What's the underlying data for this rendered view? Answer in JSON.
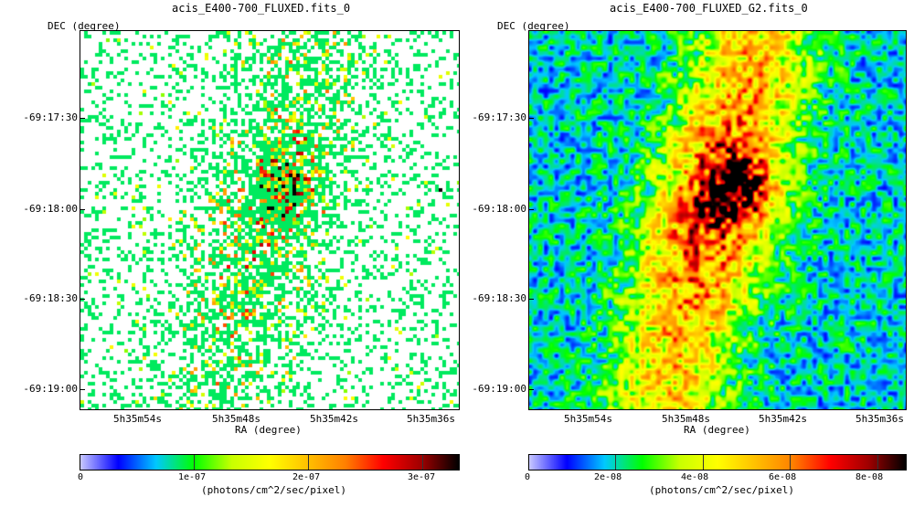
{
  "panels": [
    {
      "title": "acis_E400-700_FLUXED.fits_0",
      "dec_label": "DEC (degree)",
      "ra_label": "RA (degree)",
      "yticks": [
        "-69:17:30",
        "-69:18:00",
        "-69:18:30",
        "-69:19:00"
      ],
      "xticks": [
        "5h35m54s",
        "5h35m48s",
        "5h35m42s",
        "5h35m36s"
      ],
      "colorbar_ticks": [
        "0",
        "1e-07",
        "2e-07",
        "3e-07"
      ],
      "colorbar_unit": "(photons/cm^2/sec/pixel)",
      "image_style": "sparse-pixels"
    },
    {
      "title": "acis_E400-700_FLUXED_G2.fits_0",
      "dec_label": "DEC (degree)",
      "ra_label": "RA (degree)",
      "yticks": [
        "-69:17:30",
        "-69:18:00",
        "-69:18:30",
        "-69:19:00"
      ],
      "xticks": [
        "5h35m54s",
        "5h35m48s",
        "5h35m42s",
        "5h35m36s"
      ],
      "colorbar_ticks": [
        "0",
        "2e-08",
        "4e-08",
        "6e-08",
        "8e-08"
      ],
      "colorbar_unit": "(photons/cm^2/sec/pixel)",
      "image_style": "smoothed"
    }
  ],
  "colormap": [
    "#ffffff",
    "#c8c8ff",
    "#0000ff",
    "#00c8ff",
    "#00ff00",
    "#c8ff00",
    "#ffff00",
    "#ffc000",
    "#ff8000",
    "#ff0000",
    "#a00000",
    "#000000"
  ]
}
